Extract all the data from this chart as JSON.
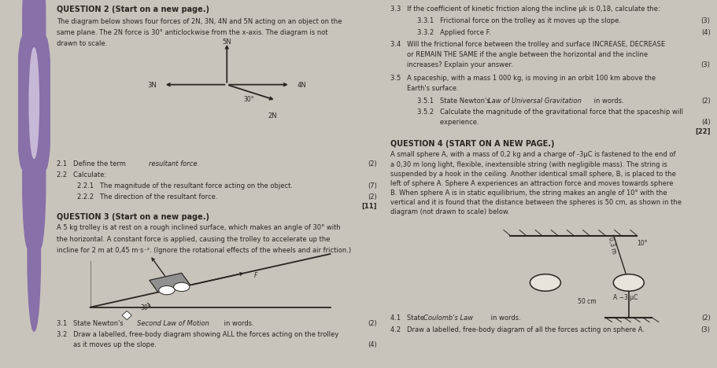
{
  "bg_color": "#c8c4bc",
  "paper_color": "#eeebe4",
  "spine_color": "#6a6080",
  "spine_pattern_color": "#8870a8",
  "text_color": "#2a2520",
  "line_color": "#2a2520",
  "left_panel": {
    "q2_header": "QUESTION 2 (Start on a new page.)",
    "q2_desc": "The diagram below shows four forces of 2N, 3N, 4N and 5N acting on an object on the\nsame plane. The 2N force is 30° anticlockwise from the x-axis. The diagram is not\ndrawn to scale.",
    "q21_a": "2.1   Define the term ",
    "q21_b": "resultant force.",
    "q21_mark": "(2)",
    "q22": "2.2   Calculate:",
    "q221": "2.2.1   The magnitude of the resultant force acting on the object.",
    "q221_mark": "(7)",
    "q222": "2.2.2   The direction of the resultant force.",
    "q222_mark": "(2)",
    "total_mark": "[11]",
    "q3_header": "QUESTION 3 (Start on a new page.)",
    "q3_desc": "A 5 kg trolley is at rest on a rough inclined surface, which makes an angle of 30° with\nthe horizontal. A constant force is applied, causing the trolley to accelerate up the\nincline for 2 m at 0,45 m·s⁻². (Ignore the rotational effects of the wheels and air friction.)",
    "q31_a": "3.1   State Newton's ",
    "q31_b": "Second Law of Motion",
    "q31_c": " in words.",
    "q31_mark": "(2)",
    "q32_a": "3.2   Draw a labelled, free-body diagram showing ALL the forces acting on the trolley",
    "q32_b": "        as it moves up the slope.",
    "q32_mark": "(4)"
  },
  "right_panel": {
    "q33": "3.3   If the coefficient of kinetic friction along the incline μk is 0,18, calculate the:",
    "q331": "3.3.1   Frictional force on the trolley as it moves up the slope.",
    "q331_mark": "(3)",
    "q332": "3.3.2   Applied force F.",
    "q332_mark": "(4)",
    "q34a": "3.4   Will the frictional force between the trolley and surface INCREASE, DECREASE",
    "q34b": "        or REMAIN THE SAME if the angle between the horizontal and the incline",
    "q34c": "        increases? Explain your answer.",
    "q34_mark": "(3)",
    "q35a": "3.5   A spaceship, with a mass 1 000 kg, is moving in an orbit 100 km above the",
    "q35b": "        Earth's surface.",
    "q351_a": "3.5.1   State Newton's ",
    "q351_b": "Law of Universal Gravitation",
    "q351_c": " in words.",
    "q351_mark": "(2)",
    "q352a": "3.5.2   Calculate the magnitude of the gravitational force that the spaceship will",
    "q352b": "           experience.",
    "q352_mark": "(4)",
    "q352_total": "[22]",
    "q4_header": "QUESTION 4 (START ON A NEW PAGE.)",
    "q4_desc1": "A small sphere A, with a mass of 0,2 kg and a charge of -3μC is fastened to the end of",
    "q4_desc2": "a 0,30 m long light, flexible, inextensible string (with negligible mass). The string is",
    "q4_desc3": "suspended by a hook in the ceiling. Another identical small sphere, B, is placed to the",
    "q4_desc4": "left of sphere A. Sphere A experiences an attraction force and moves towards sphere",
    "q4_desc5": "B. When sphere A is in static equilibrium, the string makes an angle of 10° with the",
    "q4_desc6": "vertical and it is found that the distance between the spheres is 50 cm, as shown in the",
    "q4_desc7": "diagram (not drawn to scale) below.",
    "q41_a": "4.1   State ",
    "q41_b": "Coulomb's Law",
    "q41_c": " in words.",
    "q41_mark": "(2)",
    "q42": "4.2   Draw a labelled, free-body diagram of all the forces acting on sphere A.",
    "q42_mark": "(3)"
  }
}
